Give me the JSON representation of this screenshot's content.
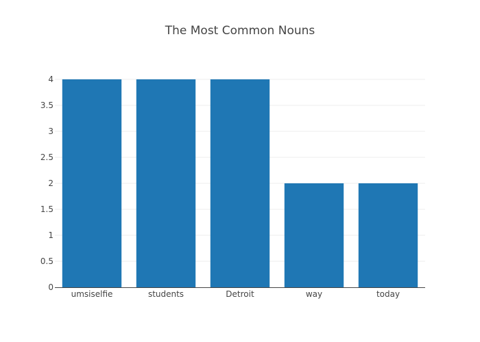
{
  "chart_data": {
    "type": "bar",
    "title": "The Most Common Nouns",
    "xlabel": "",
    "ylabel": "",
    "categories": [
      "umsiselfie",
      "students",
      "Detroit",
      "way",
      "today"
    ],
    "values": [
      4,
      4,
      4,
      2,
      2
    ],
    "ylim": [
      0,
      4
    ],
    "yticks": [
      "0",
      "0.5",
      "1",
      "1.5",
      "2",
      "2.5",
      "3",
      "3.5",
      "4"
    ],
    "grid": true,
    "legend": "none",
    "bar_color": "#1f77b4"
  }
}
